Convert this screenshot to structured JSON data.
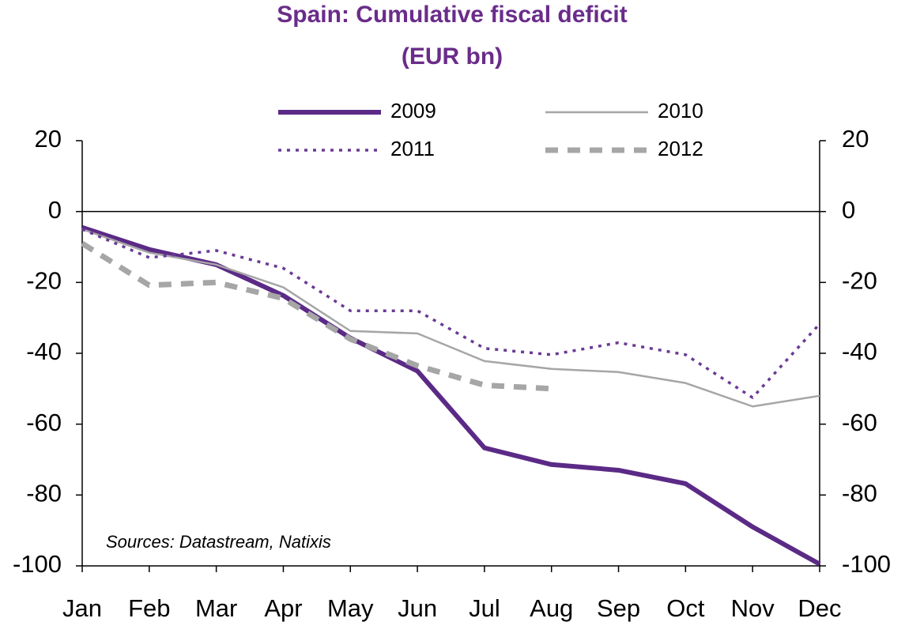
{
  "chart_data": {
    "type": "line",
    "title": "Spain: Cumulative fiscal deficit",
    "subtitle": "(EUR bn)",
    "annotation": "Sources: Datastream, Natixis",
    "categories": [
      "Jan",
      "Feb",
      "Mar",
      "Apr",
      "May",
      "Jun",
      "Jul",
      "Aug",
      "Sep",
      "Oct",
      "Nov",
      "Dec"
    ],
    "series": [
      {
        "name": "2009",
        "color": "#5b2a86",
        "width": 6,
        "dash": "solid",
        "values": [
          -4.5,
          -10.7,
          -15,
          -23.7,
          -35.7,
          -45,
          -66.7,
          -71.4,
          -73,
          -76.8,
          -89,
          -99.5
        ]
      },
      {
        "name": "2010",
        "color": "#a6a6a6",
        "width": 2.5,
        "dash": "solid",
        "values": [
          -5,
          -11.6,
          -15,
          -21.4,
          -33.7,
          -34.4,
          -42.2,
          -44.4,
          -45.3,
          -48.4,
          -55,
          -52
        ]
      },
      {
        "name": "2011",
        "color": "#6a3a96",
        "width": 3.5,
        "dash": "dotted",
        "values": [
          -5,
          -13,
          -11,
          -16,
          -28,
          -28,
          -38.6,
          -40.4,
          -37,
          -40.4,
          -52.5,
          -31.7
        ]
      },
      {
        "name": "2012",
        "color": "#a6a6a6",
        "width": 7,
        "dash": "dashed",
        "values": [
          -9,
          -20.8,
          -20,
          -24.5,
          -36,
          -43.5,
          -49,
          -50,
          null,
          null,
          null,
          null
        ]
      }
    ],
    "ylim": [
      -100,
      20
    ],
    "yticks": [
      20,
      0,
      -20,
      -40,
      -60,
      -80,
      -100
    ],
    "y2lim": [
      -100,
      20
    ],
    "y2ticks": [
      20,
      0,
      -20,
      -40,
      -60,
      -80,
      -100
    ]
  }
}
